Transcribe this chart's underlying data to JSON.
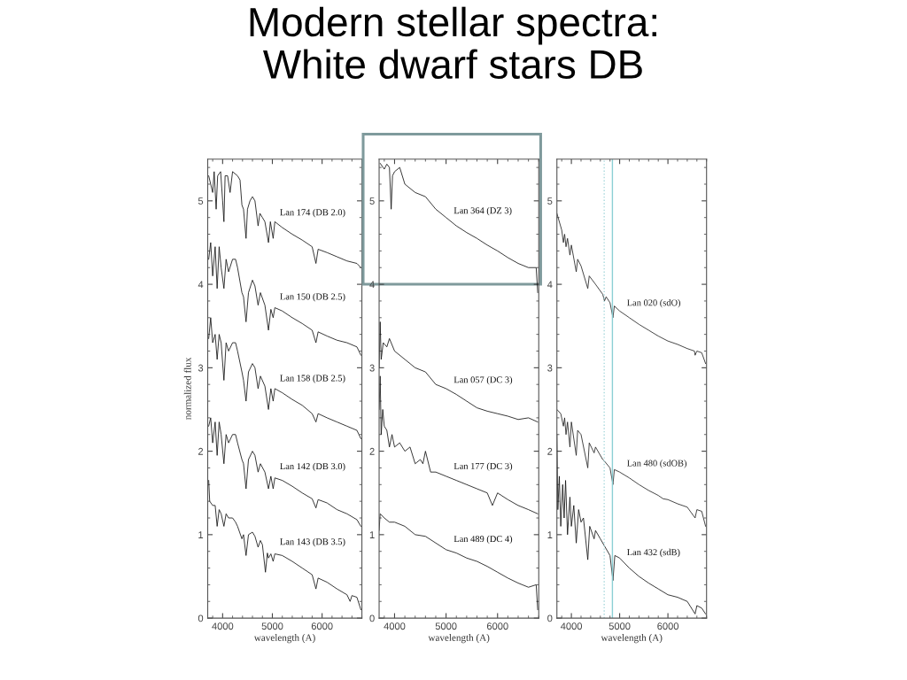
{
  "chart_data": [
    {
      "type": "line",
      "title": "Modern stellar spectra:\nWhite dwarf stars DB",
      "xlabel": "wavelength (A)",
      "ylabel": "normalized flux",
      "xlim": [
        3700,
        6800
      ],
      "ylim": [
        0,
        5.5
      ],
      "xticks": [
        4000,
        5000,
        6000
      ],
      "yticks": [
        0,
        1,
        2,
        3,
        4,
        5
      ],
      "grid": false,
      "legend": false,
      "marker": "none",
      "line_style": "solid",
      "series": [
        {
          "name": "Lan 174 (DB 2.0)",
          "color": "#111111",
          "x": [
            3720,
            3800,
            3830,
            3870,
            3900,
            3960,
            4000,
            4026,
            4050,
            4100,
            4150,
            4200,
            4300,
            4350,
            4388,
            4420,
            4471,
            4500,
            4550,
            4600,
            4650,
            4713,
            4750,
            4800,
            4850,
            4922,
            4960,
            5016,
            5050,
            5200,
            5400,
            5600,
            5800,
            5876,
            5920,
            6100,
            6300,
            6500,
            6700,
            6780
          ],
          "values": [
            5.3,
            5.1,
            5.35,
            4.9,
            5.3,
            5.35,
            5.0,
            4.75,
            5.3,
            5.3,
            5.1,
            5.35,
            5.3,
            5.25,
            4.95,
            4.9,
            4.55,
            4.9,
            5.0,
            5.05,
            5.0,
            4.7,
            4.85,
            4.8,
            4.75,
            4.5,
            4.75,
            4.55,
            4.75,
            4.68,
            4.6,
            4.53,
            4.45,
            4.25,
            4.42,
            4.38,
            4.33,
            4.28,
            4.25,
            4.2
          ]
        },
        {
          "name": "Lan 150 (DB 2.5)",
          "color": "#111111",
          "x": [
            3720,
            3760,
            3800,
            3850,
            3890,
            3930,
            3970,
            4026,
            4070,
            4120,
            4200,
            4260,
            4300,
            4388,
            4420,
            4471,
            4520,
            4600,
            4650,
            4713,
            4760,
            4850,
            4922,
            4970,
            5016,
            5050,
            5200,
            5400,
            5600,
            5800,
            5876,
            5920,
            6100,
            6300,
            6500,
            6700,
            6780
          ],
          "values": [
            4.3,
            4.5,
            4.1,
            4.45,
            3.95,
            4.45,
            4.2,
            3.95,
            4.3,
            4.15,
            4.3,
            4.3,
            4.2,
            3.9,
            3.85,
            3.55,
            3.9,
            4.05,
            3.98,
            3.75,
            3.9,
            3.75,
            3.45,
            3.7,
            3.6,
            3.72,
            3.68,
            3.6,
            3.53,
            3.45,
            3.3,
            3.43,
            3.38,
            3.33,
            3.3,
            3.25,
            3.15
          ]
        },
        {
          "name": "Lan 158 (DB 2.5)",
          "color": "#111111",
          "x": [
            3720,
            3760,
            3800,
            3850,
            3890,
            3930,
            3970,
            4026,
            4070,
            4120,
            4200,
            4260,
            4300,
            4388,
            4420,
            4471,
            4520,
            4600,
            4650,
            4713,
            4760,
            4850,
            4922,
            4970,
            5016,
            5050,
            5200,
            5400,
            5600,
            5800,
            5876,
            5920,
            6100,
            6300,
            6500,
            6700,
            6780
          ],
          "values": [
            3.35,
            3.6,
            3.3,
            3.4,
            3.1,
            3.4,
            3.3,
            2.85,
            3.3,
            3.2,
            3.3,
            3.3,
            3.2,
            2.95,
            2.85,
            2.6,
            2.95,
            3.05,
            3.0,
            2.75,
            2.9,
            2.78,
            2.5,
            2.75,
            2.6,
            2.75,
            2.7,
            2.62,
            2.55,
            2.45,
            2.35,
            2.45,
            2.4,
            2.35,
            2.3,
            2.25,
            2.15
          ]
        },
        {
          "name": "Lan 142 (DB 3.0)",
          "color": "#111111",
          "x": [
            3720,
            3760,
            3800,
            3850,
            3890,
            3930,
            3970,
            4026,
            4070,
            4120,
            4200,
            4260,
            4300,
            4388,
            4420,
            4471,
            4520,
            4600,
            4650,
            4713,
            4760,
            4850,
            4922,
            4970,
            5016,
            5050,
            5200,
            5400,
            5600,
            5800,
            5876,
            5920,
            6100,
            6300,
            6500,
            6700,
            6780
          ],
          "values": [
            2.3,
            2.4,
            2.1,
            2.35,
            1.95,
            2.35,
            2.2,
            1.85,
            2.2,
            2.1,
            2.2,
            2.2,
            2.1,
            1.9,
            1.85,
            1.55,
            1.9,
            2.0,
            1.95,
            1.75,
            1.85,
            1.75,
            1.55,
            1.7,
            1.55,
            1.68,
            1.65,
            1.58,
            1.5,
            1.43,
            1.32,
            1.42,
            1.38,
            1.3,
            1.25,
            1.18,
            1.1
          ]
        },
        {
          "name": "Lan 143 (DB 3.5)",
          "color": "#111111",
          "x": [
            3720,
            3740,
            3800,
            3850,
            3890,
            3930,
            3970,
            4026,
            4070,
            4120,
            4200,
            4260,
            4300,
            4388,
            4420,
            4471,
            4520,
            4600,
            4650,
            4713,
            4760,
            4800,
            4861,
            4900,
            4922,
            4970,
            5016,
            5050,
            5200,
            5400,
            5600,
            5800,
            5876,
            5920,
            6100,
            6300,
            6500,
            6563,
            6600,
            6700,
            6780
          ],
          "values": [
            1.65,
            1.4,
            1.35,
            1.35,
            1.1,
            1.3,
            1.25,
            1.1,
            1.25,
            1.2,
            1.2,
            1.15,
            1.1,
            0.95,
            1.0,
            0.75,
            1.0,
            1.03,
            0.98,
            0.85,
            0.93,
            0.88,
            0.55,
            0.78,
            0.72,
            0.77,
            0.68,
            0.77,
            0.75,
            0.68,
            0.6,
            0.52,
            0.35,
            0.48,
            0.43,
            0.35,
            0.28,
            0.2,
            0.27,
            0.25,
            0.1
          ]
        }
      ]
    },
    {
      "type": "line",
      "xlabel": "wavelength (A)",
      "xlim": [
        3700,
        6800
      ],
      "ylim": [
        0,
        5.5
      ],
      "xticks": [
        4000,
        5000,
        6000
      ],
      "yticks": [
        0,
        1,
        2,
        3,
        4,
        5
      ],
      "grid": false,
      "legend": false,
      "marker": "none",
      "line_style": "solid",
      "series": [
        {
          "name": "Lan 364 (DZ 3)",
          "color": "#111111",
          "x": [
            3720,
            3800,
            3850,
            3900,
            3934,
            3960,
            4000,
            4100,
            4200,
            4400,
            4600,
            4800,
            5000,
            5200,
            5400,
            5600,
            5800,
            6000,
            6200,
            6400,
            6600,
            6750,
            6780
          ],
          "values": [
            5.45,
            5.38,
            5.44,
            5.4,
            4.9,
            5.3,
            5.35,
            5.4,
            5.2,
            5.1,
            5.05,
            4.9,
            4.8,
            4.7,
            4.62,
            4.55,
            4.47,
            4.4,
            4.32,
            4.25,
            4.2,
            4.2,
            3.9
          ]
        },
        {
          "name": "Lan 057 (DC 3)",
          "color": "#111111",
          "x": [
            3700,
            3720,
            3740,
            3780,
            3850,
            3900,
            4000,
            4200,
            4400,
            4600,
            4800,
            5000,
            5200,
            5400,
            5600,
            5800,
            6000,
            6200,
            6400,
            6600,
            6780
          ],
          "values": [
            3.0,
            3.55,
            3.1,
            3.3,
            3.25,
            3.35,
            3.2,
            3.1,
            3.0,
            2.95,
            2.8,
            2.75,
            2.68,
            2.6,
            2.52,
            2.48,
            2.45,
            2.42,
            2.38,
            2.4,
            2.35
          ]
        },
        {
          "name": "Lan 177 (DC 3)",
          "color": "#111111",
          "x": [
            3700,
            3720,
            3740,
            3770,
            3800,
            3850,
            3900,
            3950,
            4000,
            4100,
            4200,
            4300,
            4400,
            4500,
            4550,
            4600,
            4700,
            4800,
            5000,
            5200,
            5400,
            5600,
            5800,
            5900,
            6000,
            6200,
            6400,
            6600,
            6780
          ],
          "values": [
            2.5,
            2.9,
            2.2,
            2.5,
            2.3,
            2.25,
            2.05,
            2.2,
            2.05,
            2.1,
            2.0,
            2.05,
            1.85,
            1.9,
            1.85,
            2.0,
            1.75,
            1.75,
            1.7,
            1.65,
            1.6,
            1.55,
            1.5,
            1.35,
            1.5,
            1.42,
            1.35,
            1.3,
            1.25
          ]
        },
        {
          "name": "Lan 489 (DC 4)",
          "color": "#111111",
          "x": [
            3700,
            3720,
            3800,
            3900,
            4000,
            4200,
            4400,
            4600,
            4800,
            5000,
            5200,
            5400,
            5600,
            5800,
            6000,
            6200,
            6400,
            6600,
            6750,
            6780
          ],
          "values": [
            1.05,
            1.25,
            1.2,
            1.15,
            1.15,
            1.1,
            1.0,
            0.98,
            0.9,
            0.82,
            0.78,
            0.72,
            0.68,
            0.62,
            0.55,
            0.48,
            0.42,
            0.37,
            0.4,
            0.1
          ]
        }
      ]
    },
    {
      "type": "line",
      "xlabel": "wavelength (A)",
      "xlim": [
        3700,
        6800
      ],
      "ylim": [
        0,
        5.5
      ],
      "xticks": [
        4000,
        5000,
        6000
      ],
      "yticks": [
        0,
        1,
        2,
        3,
        4,
        5
      ],
      "grid": false,
      "legend": false,
      "marker": "none",
      "line_style": "solid",
      "ref_lines": [
        {
          "axis": "x",
          "value": 4680,
          "color": "#a8d8dc",
          "line_style": "dotted"
        },
        {
          "axis": "x",
          "value": 4850,
          "color": "#8ccfd4",
          "line_style": "solid"
        }
      ],
      "series": [
        {
          "name": "Lan 020 (sdO)",
          "color": "#222222",
          "x": [
            3700,
            3800,
            3835,
            3860,
            3889,
            3920,
            3970,
            4000,
            4101,
            4130,
            4200,
            4340,
            4370,
            4500,
            4650,
            4686,
            4720,
            4800,
            4861,
            4890,
            5000,
            5200,
            5400,
            5600,
            5800,
            6000,
            6200,
            6400,
            6550,
            6563,
            6600,
            6700,
            6780
          ],
          "values": [
            4.85,
            4.65,
            4.5,
            4.6,
            4.45,
            4.55,
            4.35,
            4.47,
            4.15,
            4.3,
            4.22,
            3.95,
            4.1,
            4.0,
            3.88,
            3.8,
            3.85,
            3.78,
            3.6,
            3.74,
            3.68,
            3.6,
            3.52,
            3.45,
            3.38,
            3.32,
            3.28,
            3.23,
            3.2,
            3.15,
            3.2,
            3.18,
            3.05
          ]
        },
        {
          "name": "Lan 480 (sdOB)",
          "color": "#222222",
          "x": [
            3700,
            3780,
            3835,
            3860,
            3889,
            3920,
            3970,
            4000,
            4101,
            4130,
            4200,
            4340,
            4370,
            4471,
            4500,
            4650,
            4686,
            4800,
            4861,
            4890,
            5000,
            5200,
            5400,
            5600,
            5800,
            5900,
            6000,
            6200,
            6400,
            6563,
            6600,
            6700,
            6780
          ],
          "values": [
            2.5,
            2.45,
            2.3,
            2.4,
            2.2,
            2.35,
            2.05,
            2.35,
            1.95,
            2.25,
            2.2,
            1.8,
            2.1,
            1.98,
            2.05,
            1.9,
            1.88,
            1.8,
            1.6,
            1.78,
            1.75,
            1.68,
            1.6,
            1.53,
            1.47,
            1.43,
            1.42,
            1.37,
            1.33,
            1.2,
            1.3,
            1.28,
            1.1
          ]
        },
        {
          "name": "Lan 432 (sdB)",
          "color": "#111111",
          "x": [
            3700,
            3720,
            3750,
            3780,
            3820,
            3850,
            3880,
            3920,
            3970,
            4000,
            4050,
            4101,
            4150,
            4200,
            4250,
            4340,
            4380,
            4471,
            4500,
            4600,
            4700,
            4800,
            4861,
            4900,
            5000,
            5200,
            5400,
            5600,
            5800,
            6000,
            6200,
            6400,
            6563,
            6600,
            6700,
            6780
          ],
          "values": [
            2.2,
            1.3,
            1.7,
            1.1,
            1.6,
            1.2,
            1.65,
            1.0,
            1.45,
            1.1,
            1.35,
            0.9,
            1.3,
            1.15,
            1.2,
            0.7,
            1.1,
            0.95,
            1.05,
            0.95,
            0.85,
            0.75,
            0.45,
            0.75,
            0.72,
            0.6,
            0.5,
            0.42,
            0.35,
            0.28,
            0.25,
            0.2,
            0.05,
            0.15,
            0.12,
            0.05
          ]
        }
      ]
    }
  ]
}
